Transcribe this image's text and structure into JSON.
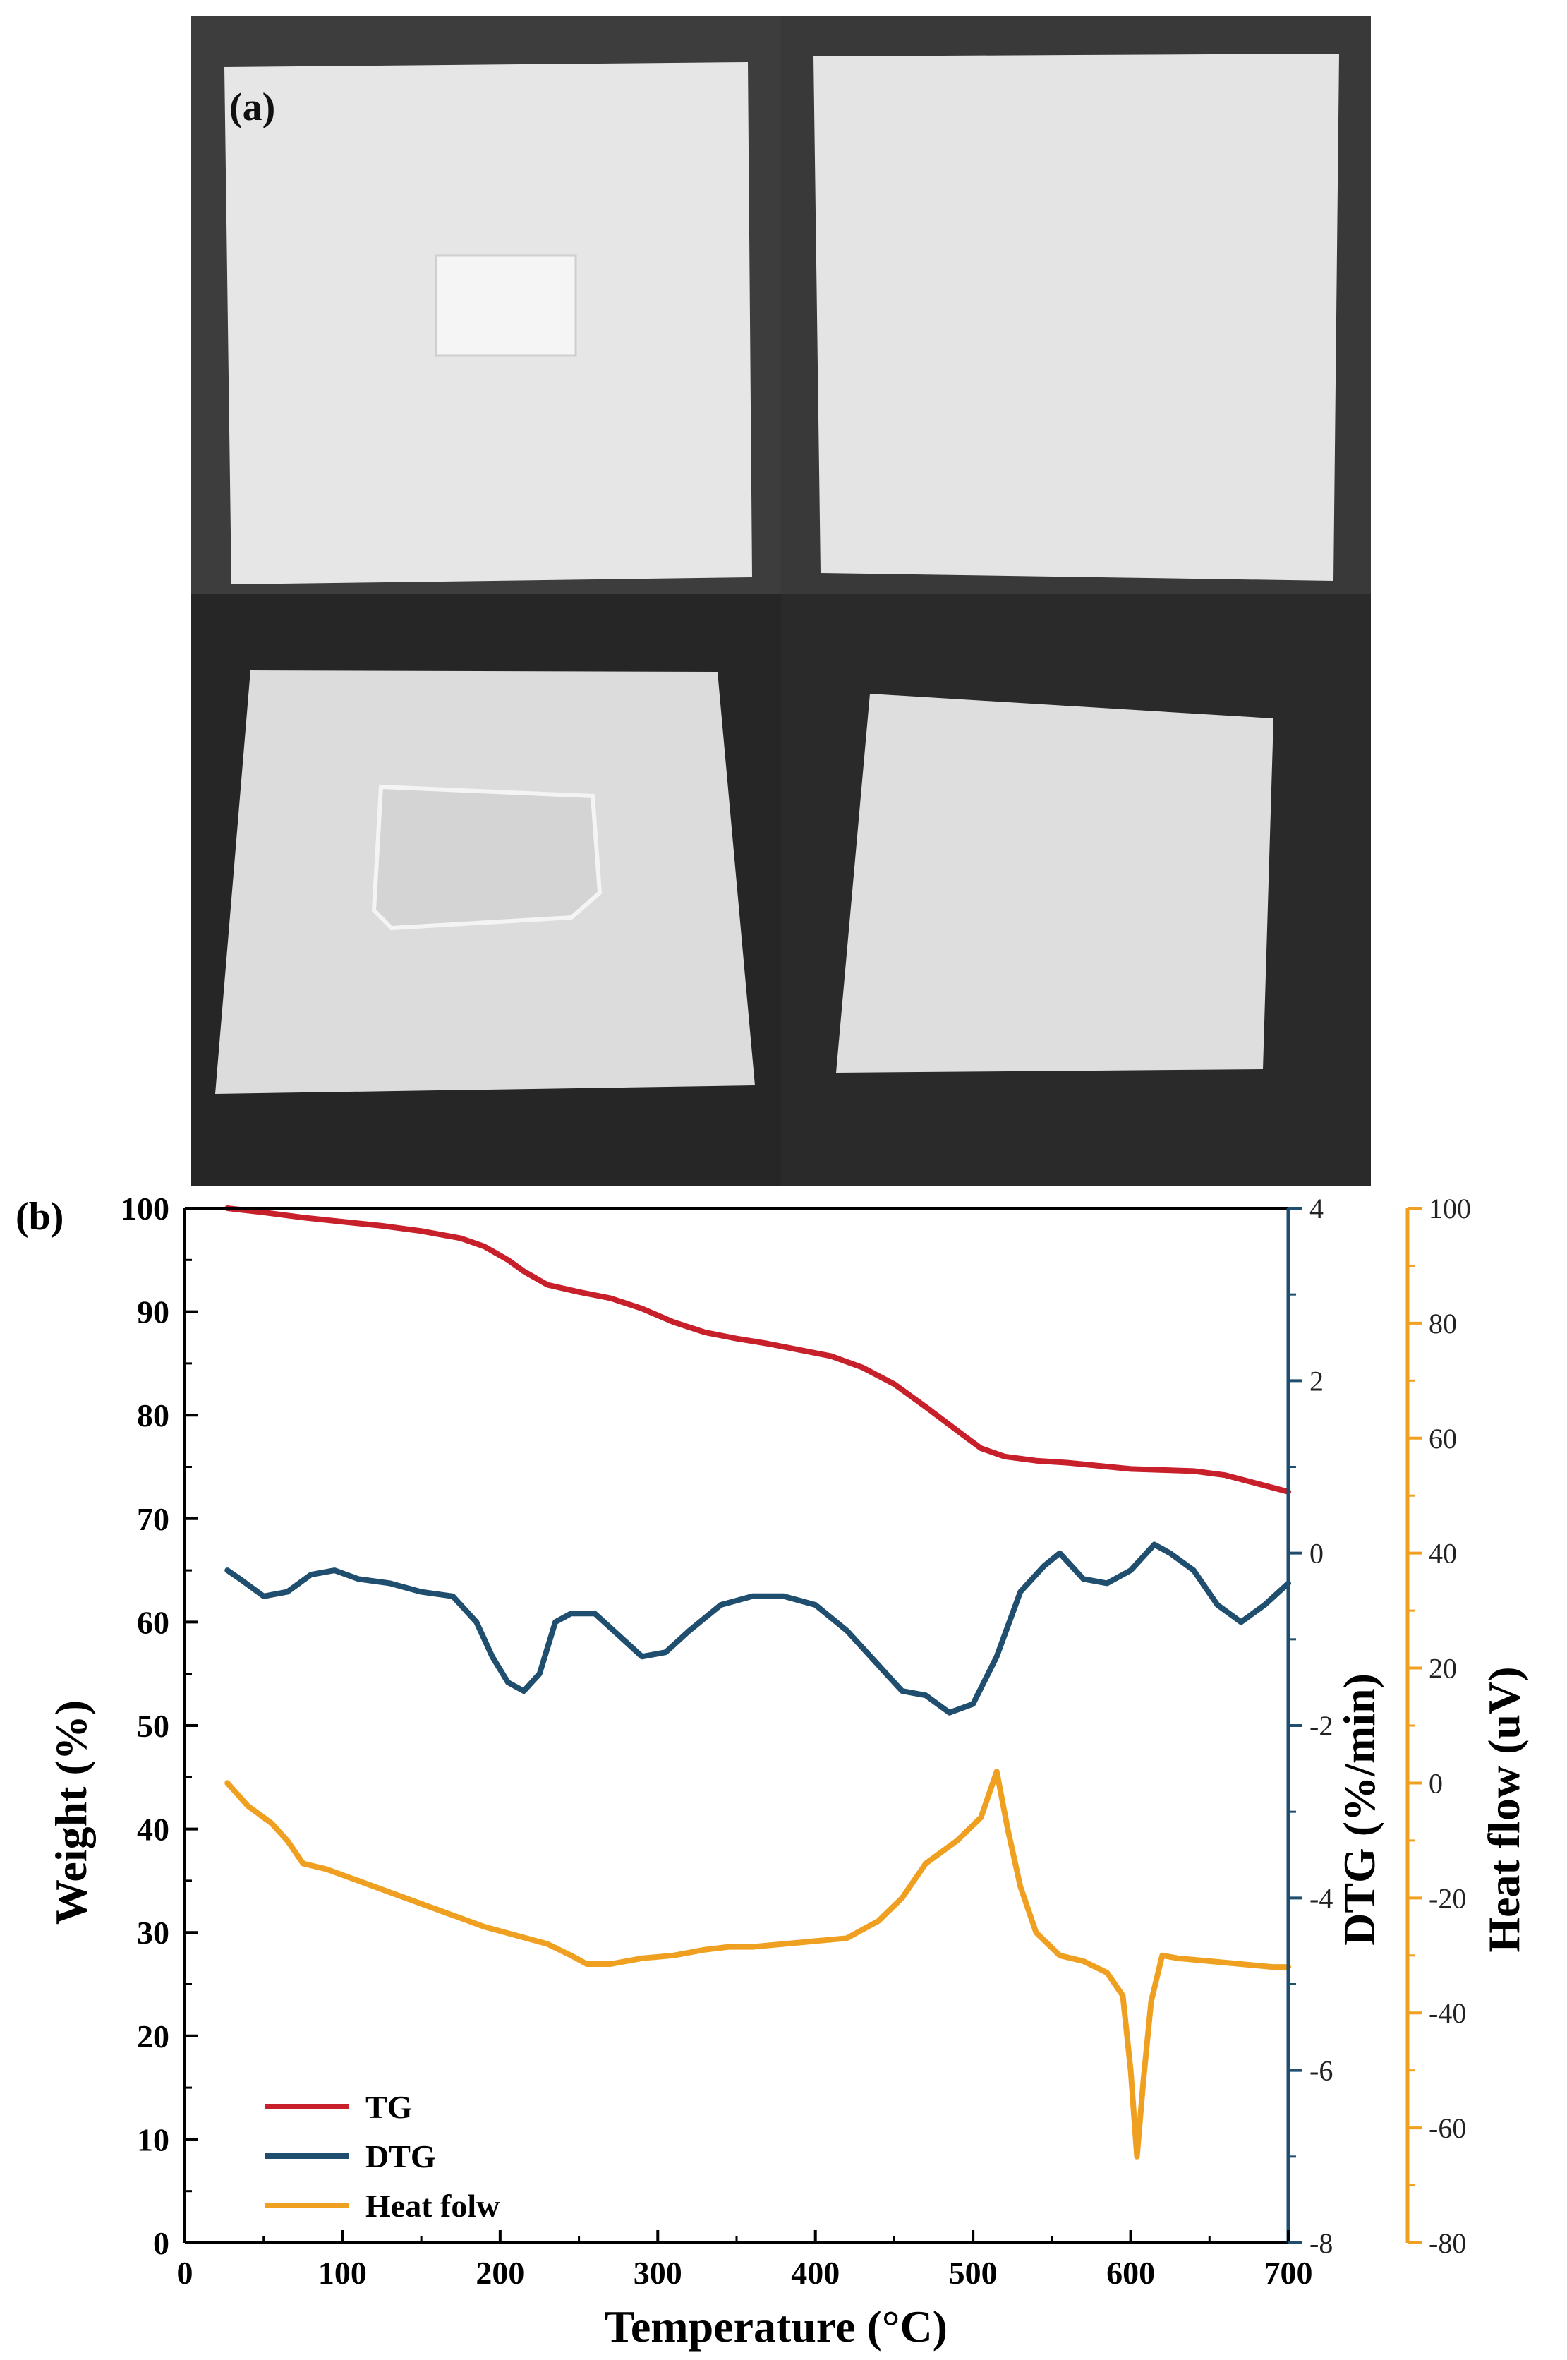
{
  "panel_a": {
    "label": "(a)",
    "description_colors": {
      "background_dark": "#3a3a3a",
      "paper": "#e8e8e8",
      "sample": "#f2f2f2"
    }
  },
  "chart_data": {
    "type": "line",
    "panel_label": "(b)",
    "xlabel": "Temperature (°C)",
    "xlim": [
      0,
      700
    ],
    "x_ticks": [
      0,
      100,
      200,
      300,
      400,
      500,
      600,
      700
    ],
    "axes": {
      "left": {
        "label": "Weight (%)",
        "lim": [
          0,
          100
        ],
        "ticks": [
          0,
          10,
          20,
          30,
          40,
          50,
          60,
          70,
          80,
          90,
          100
        ],
        "color": "#000000"
      },
      "right1": {
        "label": "DTG (%/min)",
        "lim": [
          -8,
          4
        ],
        "ticks": [
          -8,
          -6,
          -4,
          -2,
          0,
          2,
          4
        ],
        "color": "#1f4e6e"
      },
      "right2": {
        "label": "Heat flow (uV)",
        "lim": [
          -80,
          100
        ],
        "ticks": [
          -80,
          -60,
          -40,
          -20,
          0,
          20,
          40,
          60,
          80,
          100
        ],
        "color": "#f0a020"
      }
    },
    "legend_position": "bottom-left",
    "series": [
      {
        "name": "TG",
        "axis": "left",
        "color": "#c8202a",
        "x": [
          27,
          50,
          75,
          100,
          125,
          150,
          175,
          190,
          205,
          215,
          230,
          250,
          270,
          290,
          310,
          330,
          350,
          370,
          390,
          410,
          430,
          450,
          470,
          490,
          505,
          520,
          540,
          560,
          580,
          600,
          620,
          640,
          660,
          680,
          700
        ],
        "y": [
          100,
          99.6,
          99.1,
          98.7,
          98.3,
          97.8,
          97.1,
          96.3,
          95.0,
          93.9,
          92.6,
          91.9,
          91.3,
          90.3,
          89.0,
          88.0,
          87.4,
          86.9,
          86.3,
          85.7,
          84.6,
          83.0,
          80.8,
          78.5,
          76.8,
          76.0,
          75.6,
          75.4,
          75.1,
          74.8,
          74.7,
          74.6,
          74.2,
          73.4,
          72.6
        ]
      },
      {
        "name": "DTG",
        "axis": "right1",
        "color": "#1f4e6e",
        "x": [
          27,
          35,
          50,
          65,
          80,
          95,
          110,
          130,
          150,
          170,
          185,
          195,
          205,
          215,
          225,
          235,
          245,
          260,
          275,
          290,
          305,
          320,
          340,
          360,
          380,
          400,
          420,
          440,
          455,
          470,
          485,
          500,
          515,
          530,
          545,
          555,
          570,
          585,
          600,
          615,
          625,
          640,
          655,
          670,
          685,
          700
        ],
        "y": [
          -0.2,
          -0.3,
          -0.5,
          -0.45,
          -0.25,
          -0.2,
          -0.3,
          -0.35,
          -0.45,
          -0.5,
          -0.8,
          -1.2,
          -1.5,
          -1.6,
          -1.4,
          -0.8,
          -0.7,
          -0.7,
          -0.95,
          -1.2,
          -1.15,
          -0.9,
          -0.6,
          -0.5,
          -0.5,
          -0.6,
          -0.9,
          -1.3,
          -1.6,
          -1.65,
          -1.85,
          -1.75,
          -1.2,
          -0.45,
          -0.15,
          0.0,
          -0.3,
          -0.35,
          -0.2,
          0.1,
          0.0,
          -0.2,
          -0.6,
          -0.8,
          -0.6,
          -0.35
        ]
      },
      {
        "name": "Heat folw",
        "axis": "right2",
        "color": "#f0a020",
        "x": [
          27,
          40,
          55,
          65,
          75,
          90,
          110,
          130,
          150,
          170,
          190,
          210,
          230,
          245,
          255,
          270,
          290,
          310,
          330,
          345,
          360,
          380,
          400,
          420,
          440,
          455,
          470,
          490,
          505,
          515,
          522,
          530,
          540,
          555,
          570,
          585,
          595,
          600,
          604,
          608,
          613,
          620,
          630,
          650,
          670,
          690,
          700
        ],
        "y": [
          0,
          -4,
          -7,
          -10,
          -14,
          -15,
          -17,
          -19,
          -21,
          -23,
          -25,
          -26.5,
          -28,
          -30,
          -31.5,
          -31.5,
          -30.5,
          -30,
          -29,
          -28.5,
          -28.5,
          -28,
          -27.5,
          -27,
          -24,
          -20,
          -14,
          -10,
          -6,
          2,
          -8,
          -18,
          -26,
          -30,
          -31,
          -33,
          -37,
          -50,
          -65,
          -52,
          -38,
          -30,
          -30.5,
          -31,
          -31.5,
          -32,
          -32
        ]
      }
    ]
  }
}
